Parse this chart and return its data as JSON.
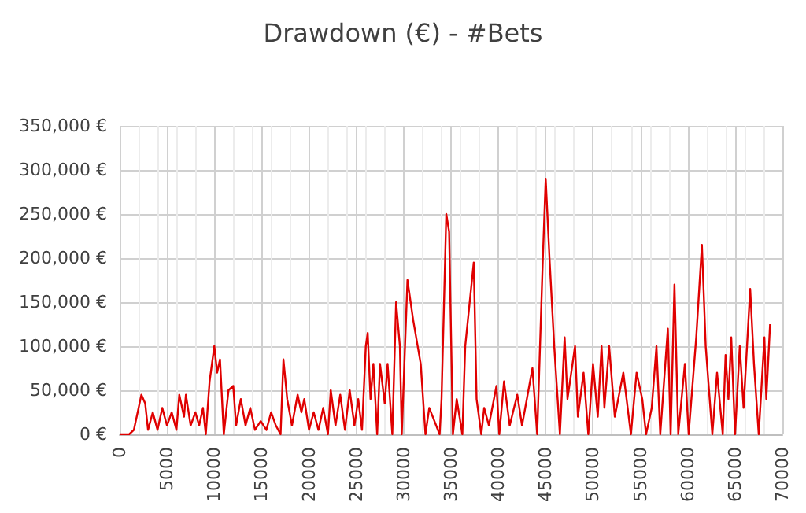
{
  "chart_data": {
    "type": "line",
    "title": "Drawdown (€) - #Bets",
    "x": [
      0,
      1000,
      1500,
      2000,
      2300,
      2700,
      3000,
      3500,
      4000,
      4500,
      5000,
      5500,
      6000,
      6300,
      6800,
      7000,
      7500,
      8000,
      8400,
      8800,
      9100,
      9500,
      10000,
      10300,
      10600,
      11000,
      11500,
      12000,
      12300,
      12800,
      13300,
      13800,
      14300,
      14900,
      15500,
      16000,
      16500,
      17000,
      17300,
      17700,
      18200,
      18800,
      19200,
      19500,
      20000,
      20500,
      21000,
      21500,
      22000,
      22300,
      22800,
      23300,
      23800,
      24300,
      24800,
      25200,
      25600,
      26000,
      26200,
      26500,
      26800,
      27200,
      27500,
      28000,
      28300,
      28800,
      29200,
      29600,
      29800,
      30400,
      31000,
      31800,
      32300,
      32700,
      33800,
      34000,
      34500,
      34800,
      35200,
      35600,
      36200,
      36500,
      37400,
      37700,
      38200,
      38500,
      39000,
      39800,
      40100,
      40600,
      41200,
      42000,
      42500,
      43600,
      44100,
      44700,
      45000,
      45400,
      45900,
      46500,
      47000,
      47300,
      48100,
      48400,
      49000,
      49500,
      50000,
      50500,
      50900,
      51200,
      51700,
      52300,
      53200,
      54000,
      54600,
      55200,
      55600,
      56200,
      56700,
      57100,
      57900,
      58200,
      58600,
      59000,
      59700,
      60100,
      60900,
      61500,
      61900,
      62600,
      63100,
      63700,
      64000,
      64300,
      64600,
      65000,
      65500,
      65900,
      66600,
      67000,
      67500,
      68100,
      68300,
      68700
    ],
    "series": [
      {
        "color": "#e00000",
        "values": [
          0,
          0,
          5000,
          30000,
          45000,
          35000,
          5000,
          25000,
          5000,
          30000,
          10000,
          25000,
          5000,
          45000,
          20000,
          45000,
          10000,
          25000,
          10000,
          30000,
          0,
          60000,
          100000,
          70000,
          85000,
          0,
          50000,
          55000,
          10000,
          40000,
          10000,
          30000,
          5000,
          15000,
          5000,
          25000,
          10000,
          0,
          85000,
          40000,
          10000,
          45000,
          25000,
          40000,
          5000,
          25000,
          5000,
          30000,
          0,
          50000,
          10000,
          45000,
          5000,
          50000,
          10000,
          40000,
          5000,
          100000,
          115000,
          40000,
          80000,
          0,
          80000,
          35000,
          80000,
          0,
          150000,
          100000,
          0,
          175000,
          130000,
          80000,
          0,
          30000,
          0,
          40000,
          250000,
          230000,
          0,
          40000,
          0,
          100000,
          195000,
          40000,
          0,
          30000,
          10000,
          55000,
          0,
          60000,
          10000,
          45000,
          10000,
          75000,
          0,
          200000,
          290000,
          200000,
          100000,
          0,
          110000,
          40000,
          100000,
          20000,
          70000,
          0,
          80000,
          20000,
          100000,
          30000,
          100000,
          20000,
          70000,
          0,
          70000,
          40000,
          0,
          30000,
          100000,
          0,
          120000,
          0,
          170000,
          0,
          80000,
          0,
          110000,
          215000,
          100000,
          0,
          70000,
          0,
          90000,
          40000,
          110000,
          0,
          100000,
          30000,
          165000,
          80000,
          0,
          110000,
          40000,
          125000
        ]
      }
    ],
    "xlim": [
      0,
      70000
    ],
    "xticks": [
      0,
      5000,
      10000,
      15000,
      20000,
      25000,
      30000,
      35000,
      40000,
      45000,
      50000,
      55000,
      60000,
      65000,
      70000
    ],
    "ylim": [
      0,
      350000
    ],
    "yticks": [
      {
        "value": 0,
        "label": "0 €"
      },
      {
        "value": 50000,
        "label": "50,000 €"
      },
      {
        "value": 100000,
        "label": "100,000 €"
      },
      {
        "value": 150000,
        "label": "150,000 €"
      },
      {
        "value": 200000,
        "label": "200,000 €"
      },
      {
        "value": 250000,
        "label": "250,000 €"
      },
      {
        "value": 300000,
        "label": "300,000 €"
      },
      {
        "value": 350000,
        "label": "350,000 €"
      }
    ],
    "grid": true,
    "marker": "none",
    "line_style": "solid"
  }
}
